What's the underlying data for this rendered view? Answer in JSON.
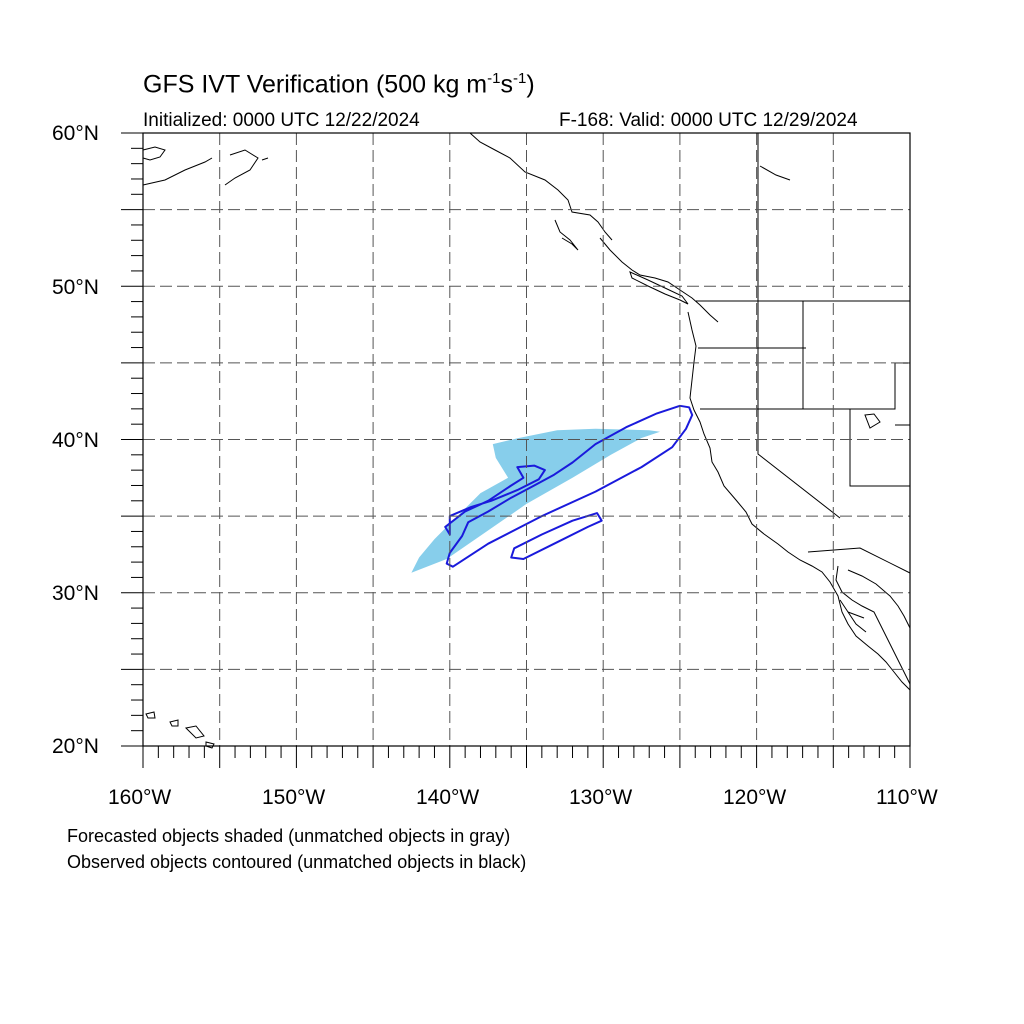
{
  "header": {
    "title_main": "GFS IVT Verification (500 kg m",
    "title_exp1": "-1",
    "title_mid": "s",
    "title_exp2": "-1",
    "title_end": ")",
    "initialized": "Initialized: 0000 UTC 12/22/2024",
    "valid": "F-168: Valid: 0000 UTC 12/29/2024"
  },
  "axes": {
    "lat_labels": [
      "60°N",
      "50°N",
      "40°N",
      "30°N",
      "20°N"
    ],
    "lon_labels": [
      "160°W",
      "150°W",
      "140°W",
      "130°W",
      "120°W",
      "110°W"
    ],
    "lat_range": [
      20,
      60
    ],
    "lon_range": [
      -160,
      -110
    ],
    "grid": "dashed"
  },
  "legend": {
    "forecast_note": "Forecasted objects shaded (unmatched objects in gray)",
    "observed_note": "Observed objects contoured (unmatched objects in black)"
  },
  "colors": {
    "forecast_fill": "#87ceeb",
    "observed_contour": "#1a1adc",
    "coastline": "#000000",
    "grid": "#555555"
  },
  "map_data": {
    "forecast_object": [
      [
        -142.5,
        31.3
      ],
      [
        -140.2,
        32.2
      ],
      [
        -137.6,
        34.0
      ],
      [
        -135.0,
        35.8
      ],
      [
        -132.0,
        37.5
      ],
      [
        -129.5,
        39.0
      ],
      [
        -127.5,
        40.1
      ],
      [
        -126.3,
        40.5
      ],
      [
        -127.0,
        40.6
      ],
      [
        -130.5,
        40.7
      ],
      [
        -133.0,
        40.6
      ],
      [
        -135.5,
        40.1
      ],
      [
        -137.2,
        39.7
      ],
      [
        -137.0,
        38.8
      ],
      [
        -136.2,
        37.5
      ],
      [
        -138.0,
        36.5
      ],
      [
        -139.0,
        35.5
      ],
      [
        -140.0,
        34.5
      ],
      [
        -141.0,
        33.5
      ],
      [
        -142.0,
        32.3
      ]
    ],
    "observed_contours": [
      [
        [
          -139.8,
          31.7
        ],
        [
          -137.5,
          33.2
        ],
        [
          -134.0,
          35.0
        ],
        [
          -130.5,
          36.6
        ],
        [
          -127.5,
          38.2
        ],
        [
          -125.5,
          39.5
        ],
        [
          -124.6,
          40.7
        ],
        [
          -124.2,
          41.6
        ],
        [
          -124.4,
          42.1
        ],
        [
          -125.0,
          42.2
        ],
        [
          -126.5,
          41.7
        ],
        [
          -128.5,
          40.8
        ],
        [
          -130.5,
          39.7
        ],
        [
          -132.0,
          38.5
        ],
        [
          -133.2,
          37.7
        ],
        [
          -134.5,
          37.0
        ],
        [
          -136.0,
          36.2
        ],
        [
          -137.5,
          35.3
        ],
        [
          -138.8,
          34.6
        ],
        [
          -139.2,
          33.7
        ],
        [
          -140.0,
          32.6
        ],
        [
          -140.2,
          31.9
        ]
      ],
      [
        [
          -135.2,
          32.2
        ],
        [
          -133.0,
          33.3
        ],
        [
          -131.0,
          34.3
        ],
        [
          -130.1,
          34.7
        ],
        [
          -130.4,
          35.2
        ],
        [
          -132.0,
          34.7
        ],
        [
          -134.0,
          33.8
        ],
        [
          -135.8,
          32.9
        ],
        [
          -136.0,
          32.3
        ]
      ],
      [
        [
          -140.0,
          35.0
        ],
        [
          -138.6,
          35.6
        ],
        [
          -137.3,
          36.0
        ],
        [
          -135.6,
          36.7
        ],
        [
          -134.2,
          37.4
        ],
        [
          -133.8,
          38.0
        ],
        [
          -134.5,
          38.3
        ],
        [
          -135.6,
          38.2
        ],
        [
          -135.2,
          37.5
        ],
        [
          -136.0,
          37.0
        ],
        [
          -137.5,
          36.0
        ],
        [
          -139.0,
          35.3
        ],
        [
          -140.3,
          34.3
        ],
        [
          -140.0,
          33.8
        ]
      ]
    ]
  }
}
